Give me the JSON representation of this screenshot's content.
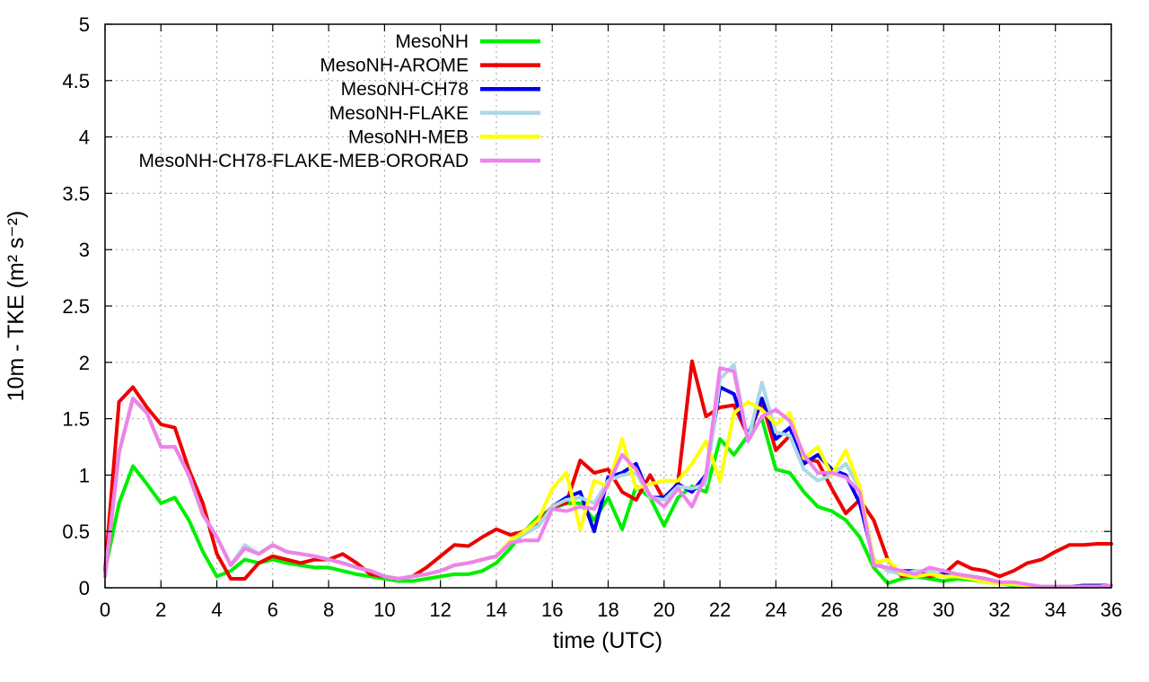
{
  "chart_data": {
    "type": "line",
    "xlabel": "time (UTC)",
    "ylabel": "10m - TKE (m² s⁻²)",
    "xlim": [
      0,
      36
    ],
    "ylim": [
      0,
      5
    ],
    "xticks": [
      "0",
      "2",
      "4",
      "6",
      "8",
      "10",
      "12",
      "14",
      "16",
      "18",
      "20",
      "22",
      "24",
      "26",
      "28",
      "30",
      "32",
      "34",
      "36"
    ],
    "yticks": [
      "0",
      "0.5",
      "1",
      "1.5",
      "2",
      "2.5",
      "3",
      "3.5",
      "4",
      "4.5",
      "5"
    ],
    "grid": true,
    "legend_position": "top-left",
    "series": [
      {
        "name": "MesoNH",
        "color": "#00ee00",
        "x": [
          0,
          0.5,
          1,
          1.5,
          2,
          2.5,
          3,
          3.5,
          4,
          4.5,
          5,
          5.5,
          6,
          6.5,
          7,
          7.5,
          8,
          8.5,
          9,
          9.5,
          10,
          10.5,
          11,
          11.5,
          12,
          12.5,
          13,
          13.5,
          14,
          14.5,
          15,
          15.5,
          16,
          16.5,
          17,
          17.5,
          18,
          18.5,
          19,
          19.5,
          20,
          20.5,
          21,
          21.5,
          22,
          22.5,
          23,
          23.5,
          24,
          24.5,
          25,
          25.5,
          26,
          26.5,
          27,
          27.5,
          28,
          28.5,
          29,
          29.5,
          30,
          30.5,
          31,
          31.5,
          32,
          32.5,
          33,
          33.5,
          34,
          34.5,
          35,
          35.5,
          36
        ],
        "values": [
          0.15,
          0.75,
          1.08,
          0.92,
          0.75,
          0.8,
          0.6,
          0.32,
          0.1,
          0.15,
          0.25,
          0.22,
          0.25,
          0.22,
          0.2,
          0.18,
          0.18,
          0.15,
          0.12,
          0.1,
          0.08,
          0.06,
          0.06,
          0.08,
          0.1,
          0.12,
          0.12,
          0.15,
          0.22,
          0.35,
          0.5,
          0.63,
          0.7,
          0.75,
          0.75,
          0.6,
          0.8,
          0.52,
          0.9,
          0.8,
          0.55,
          0.8,
          0.9,
          0.85,
          1.32,
          1.18,
          1.35,
          1.5,
          1.05,
          1.02,
          0.85,
          0.72,
          0.68,
          0.6,
          0.45,
          0.18,
          0.04,
          0.08,
          0.1,
          0.08,
          0.06,
          0.08,
          0.07,
          0.05,
          0.04,
          0.02,
          0.02,
          0.01,
          0.01,
          0.01,
          0.01,
          0.01,
          0.02
        ]
      },
      {
        "name": "MesoNH-AROME",
        "color": "#ee0000",
        "x": [
          0,
          0.5,
          1,
          1.5,
          2,
          2.5,
          3,
          3.5,
          4,
          4.5,
          5,
          5.5,
          6,
          6.5,
          7,
          7.5,
          8,
          8.5,
          9,
          9.5,
          10,
          10.5,
          11,
          11.5,
          12,
          12.5,
          13,
          13.5,
          14,
          14.5,
          15,
          15.5,
          16,
          16.5,
          17,
          17.5,
          18,
          18.5,
          19,
          19.5,
          20,
          20.5,
          21,
          21.5,
          22,
          22.5,
          23,
          23.5,
          24,
          24.5,
          25,
          25.5,
          26,
          26.5,
          27,
          27.5,
          28,
          28.5,
          29,
          29.5,
          30,
          30.5,
          31,
          31.5,
          32,
          32.5,
          33,
          33.5,
          34,
          34.5,
          35,
          35.5,
          36
        ],
        "values": [
          0.15,
          1.65,
          1.78,
          1.6,
          1.45,
          1.42,
          1.05,
          0.75,
          0.3,
          0.08,
          0.08,
          0.22,
          0.28,
          0.25,
          0.22,
          0.25,
          0.25,
          0.3,
          0.22,
          0.12,
          0.1,
          0.08,
          0.1,
          0.18,
          0.28,
          0.38,
          0.37,
          0.45,
          0.52,
          0.47,
          0.5,
          0.58,
          0.72,
          0.75,
          1.13,
          1.02,
          1.05,
          0.85,
          0.78,
          1.0,
          0.78,
          0.93,
          2.01,
          1.52,
          1.6,
          1.62,
          1.35,
          1.65,
          1.22,
          1.35,
          1.15,
          1.12,
          0.88,
          0.66,
          0.78,
          0.6,
          0.25,
          0.1,
          0.12,
          0.1,
          0.12,
          0.23,
          0.17,
          0.15,
          0.1,
          0.15,
          0.22,
          0.25,
          0.32,
          0.38,
          0.38,
          0.39,
          0.39
        ]
      },
      {
        "name": "MesoNH-CH78",
        "color": "#0000ee",
        "x": [
          0,
          0.5,
          1,
          1.5,
          2,
          2.5,
          3,
          3.5,
          4,
          4.5,
          5,
          5.5,
          6,
          6.5,
          7,
          7.5,
          8,
          8.5,
          9,
          9.5,
          10,
          10.5,
          11,
          11.5,
          12,
          12.5,
          13,
          13.5,
          14,
          14.5,
          15,
          15.5,
          16,
          16.5,
          17,
          17.5,
          18,
          18.5,
          19,
          19.5,
          20,
          20.5,
          21,
          21.5,
          22,
          22.5,
          23,
          23.5,
          24,
          24.5,
          25,
          25.5,
          26,
          26.5,
          27,
          27.5,
          28,
          28.5,
          29,
          29.5,
          30,
          30.5,
          31,
          31.5,
          32,
          32.5,
          33,
          33.5,
          34,
          34.5,
          35,
          35.5,
          36
        ],
        "values": [
          0.1,
          1.2,
          1.68,
          1.55,
          1.25,
          1.25,
          1.0,
          0.65,
          0.45,
          0.2,
          0.35,
          0.3,
          0.38,
          0.32,
          0.3,
          0.28,
          0.25,
          0.22,
          0.18,
          0.15,
          0.1,
          0.08,
          0.1,
          0.12,
          0.15,
          0.2,
          0.22,
          0.25,
          0.28,
          0.4,
          0.48,
          0.55,
          0.72,
          0.8,
          0.85,
          0.5,
          0.98,
          1.02,
          1.1,
          0.8,
          0.8,
          0.92,
          0.85,
          1.0,
          1.78,
          1.72,
          1.35,
          1.68,
          1.32,
          1.42,
          1.1,
          1.18,
          1.05,
          1.0,
          0.75,
          0.25,
          0.15,
          0.15,
          0.15,
          0.12,
          0.12,
          0.1,
          0.1,
          0.08,
          0.05,
          0.03,
          0.02,
          0.01,
          0.01,
          0.01,
          0.02,
          0.02,
          0.02
        ]
      },
      {
        "name": "MesoNH-FLAKE",
        "color": "#add8e6",
        "x": [
          0,
          0.5,
          1,
          1.5,
          2,
          2.5,
          3,
          3.5,
          4,
          4.5,
          5,
          5.5,
          6,
          6.5,
          7,
          7.5,
          8,
          8.5,
          9,
          9.5,
          10,
          10.5,
          11,
          11.5,
          12,
          12.5,
          13,
          13.5,
          14,
          14.5,
          15,
          15.5,
          16,
          16.5,
          17,
          17.5,
          18,
          18.5,
          19,
          19.5,
          20,
          20.5,
          21,
          21.5,
          22,
          22.5,
          23,
          23.5,
          24,
          24.5,
          25,
          25.5,
          26,
          26.5,
          27,
          27.5,
          28,
          28.5,
          29,
          29.5,
          30,
          30.5,
          31,
          31.5,
          32,
          32.5,
          33,
          33.5,
          34,
          34.5,
          35,
          35.5,
          36
        ],
        "values": [
          0.1,
          1.2,
          1.68,
          1.55,
          1.25,
          1.25,
          1.0,
          0.65,
          0.45,
          0.2,
          0.38,
          0.3,
          0.38,
          0.32,
          0.3,
          0.28,
          0.25,
          0.22,
          0.18,
          0.15,
          0.1,
          0.08,
          0.1,
          0.12,
          0.15,
          0.2,
          0.22,
          0.25,
          0.28,
          0.4,
          0.48,
          0.55,
          0.72,
          0.78,
          0.8,
          0.75,
          0.95,
          1.0,
          1.02,
          0.8,
          0.78,
          0.9,
          0.88,
          0.92,
          1.85,
          1.98,
          1.3,
          1.82,
          1.38,
          1.35,
          1.05,
          0.95,
          1.0,
          1.1,
          0.88,
          0.25,
          0.15,
          0.12,
          0.15,
          0.15,
          0.1,
          0.1,
          0.08,
          0.05,
          0.04,
          0.03,
          0.02,
          0.01,
          0.01,
          0.01,
          0.01,
          0.01,
          0.02
        ]
      },
      {
        "name": "MesoNH-MEB",
        "color": "#ffff00",
        "x": [
          0,
          0.5,
          1,
          1.5,
          2,
          2.5,
          3,
          3.5,
          4,
          4.5,
          5,
          5.5,
          6,
          6.5,
          7,
          7.5,
          8,
          8.5,
          9,
          9.5,
          10,
          10.5,
          11,
          11.5,
          12,
          12.5,
          13,
          13.5,
          14,
          14.5,
          15,
          15.5,
          16,
          16.5,
          17,
          17.5,
          18,
          18.5,
          19,
          19.5,
          20,
          20.5,
          21,
          21.5,
          22,
          22.5,
          23,
          23.5,
          24,
          24.5,
          25,
          25.5,
          26,
          26.5,
          27,
          27.5,
          28,
          28.5,
          29,
          29.5,
          30,
          30.5,
          31,
          31.5,
          32,
          32.5,
          33,
          33.5,
          34,
          34.5,
          35,
          35.5,
          36
        ],
        "values": [
          0.1,
          1.2,
          1.68,
          1.55,
          1.25,
          1.25,
          1.0,
          0.65,
          0.45,
          0.2,
          0.35,
          0.3,
          0.38,
          0.32,
          0.3,
          0.28,
          0.25,
          0.22,
          0.18,
          0.15,
          0.1,
          0.08,
          0.1,
          0.12,
          0.15,
          0.2,
          0.22,
          0.25,
          0.28,
          0.42,
          0.5,
          0.6,
          0.88,
          1.02,
          0.52,
          0.95,
          0.9,
          1.32,
          0.88,
          0.92,
          0.95,
          0.95,
          1.1,
          1.3,
          0.95,
          1.55,
          1.65,
          1.58,
          1.45,
          1.55,
          1.15,
          1.25,
          1.0,
          1.22,
          0.9,
          0.22,
          0.25,
          0.12,
          0.1,
          0.12,
          0.1,
          0.1,
          0.08,
          0.05,
          0.04,
          0.03,
          0.02,
          0.01,
          0.01,
          0.01,
          0.01,
          0.01,
          0.02
        ]
      },
      {
        "name": "MesoNH-CH78-FLAKE-MEB-ORORAD",
        "color": "#ee82ee",
        "x": [
          0,
          0.5,
          1,
          1.5,
          2,
          2.5,
          3,
          3.5,
          4,
          4.5,
          5,
          5.5,
          6,
          6.5,
          7,
          7.5,
          8,
          8.5,
          9,
          9.5,
          10,
          10.5,
          11,
          11.5,
          12,
          12.5,
          13,
          13.5,
          14,
          14.5,
          15,
          15.5,
          16,
          16.5,
          17,
          17.5,
          18,
          18.5,
          19,
          19.5,
          20,
          20.5,
          21,
          21.5,
          22,
          22.5,
          23,
          23.5,
          24,
          24.5,
          25,
          25.5,
          26,
          26.5,
          27,
          27.5,
          28,
          28.5,
          29,
          29.5,
          30,
          30.5,
          31,
          31.5,
          32,
          32.5,
          33,
          33.5,
          34,
          34.5,
          35,
          35.5,
          36
        ],
        "values": [
          0.1,
          1.2,
          1.68,
          1.55,
          1.25,
          1.25,
          1.0,
          0.65,
          0.45,
          0.2,
          0.35,
          0.3,
          0.38,
          0.32,
          0.3,
          0.28,
          0.25,
          0.22,
          0.18,
          0.15,
          0.1,
          0.08,
          0.1,
          0.12,
          0.15,
          0.2,
          0.22,
          0.25,
          0.28,
          0.4,
          0.42,
          0.42,
          0.7,
          0.68,
          0.72,
          0.7,
          0.92,
          1.18,
          1.05,
          0.82,
          0.72,
          0.88,
          0.72,
          1.0,
          1.95,
          1.92,
          1.3,
          1.52,
          1.58,
          1.48,
          1.18,
          1.02,
          1.02,
          0.98,
          0.85,
          0.2,
          0.18,
          0.15,
          0.12,
          0.18,
          0.15,
          0.12,
          0.1,
          0.08,
          0.05,
          0.05,
          0.03,
          0.01,
          0.01,
          0.01,
          0.01,
          0.01,
          0.02
        ]
      }
    ]
  }
}
